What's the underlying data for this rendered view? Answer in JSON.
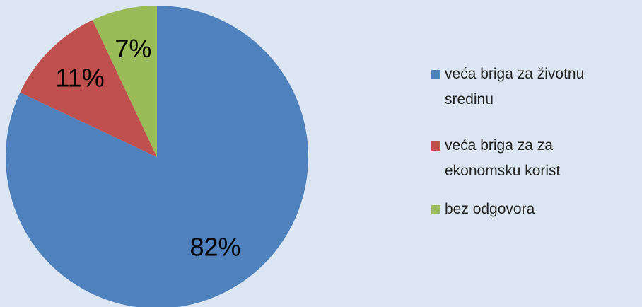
{
  "chart_data": {
    "type": "pie",
    "categories": [
      "veća briga za životnu sredinu",
      "veća briga za za ekonomsku korist",
      "bez odgovora"
    ],
    "values": [
      82,
      11,
      7
    ],
    "value_labels": [
      "82%",
      "11%",
      "7%"
    ],
    "colors": [
      "#4f81bd",
      "#c0504d",
      "#9bbb59"
    ],
    "legend": "right"
  }
}
